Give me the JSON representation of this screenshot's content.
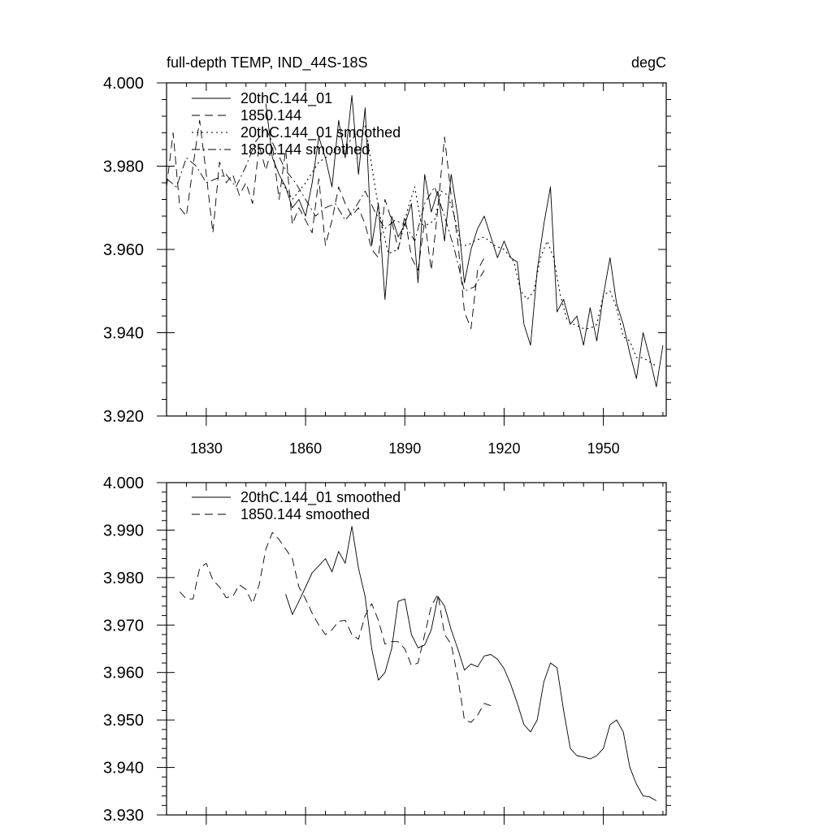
{
  "chart_data": [
    {
      "type": "line",
      "title": "full-depth TEMP, IND_44S-18S",
      "units": "degC",
      "xlim": [
        1818,
        1969
      ],
      "ylim": [
        3.92,
        4.0
      ],
      "x_ticks": [
        1830,
        1860,
        1890,
        1920,
        1950
      ],
      "x_tick_labels": [
        "1830",
        "1860",
        "1890",
        "1920",
        "1950"
      ],
      "y_ticks": [
        3.92,
        3.94,
        3.96,
        3.98,
        4.0
      ],
      "y_tick_labels": [
        "3.920",
        "3.940",
        "3.960",
        "3.980",
        "4.000"
      ],
      "legend_position": "top-left",
      "series": [
        {
          "name": "20thC.144_01",
          "style": "solid",
          "x": [
            1848,
            1850,
            1852,
            1854,
            1856,
            1858,
            1860,
            1862,
            1864,
            1866,
            1868,
            1870,
            1872,
            1874,
            1876,
            1878,
            1880,
            1882,
            1884,
            1886,
            1888,
            1890,
            1892,
            1894,
            1896,
            1898,
            1900,
            1902,
            1904,
            1906,
            1908,
            1910,
            1912,
            1914,
            1916,
            1918,
            1920,
            1922,
            1924,
            1926,
            1928,
            1930,
            1932,
            1934,
            1936,
            1938,
            1940,
            1942,
            1944,
            1946,
            1948,
            1950,
            1952,
            1954,
            1956,
            1958,
            1960,
            1962,
            1964,
            1966,
            1968
          ],
          "values": [
            3.995,
            3.982,
            3.978,
            3.975,
            3.97,
            3.972,
            3.968,
            3.976,
            3.987,
            3.982,
            3.975,
            3.991,
            3.982,
            3.997,
            3.978,
            3.994,
            3.961,
            3.971,
            3.948,
            3.968,
            3.963,
            3.966,
            3.971,
            3.952,
            3.978,
            3.969,
            3.974,
            3.962,
            3.978,
            3.968,
            3.952,
            3.96,
            3.965,
            3.968,
            3.963,
            3.958,
            3.962,
            3.958,
            3.957,
            3.942,
            3.937,
            3.955,
            3.966,
            3.975,
            3.945,
            3.948,
            3.942,
            3.944,
            3.937,
            3.946,
            3.938,
            3.949,
            3.958,
            3.947,
            3.942,
            3.935,
            3.929,
            3.94,
            3.934,
            3.927,
            3.937
          ]
        },
        {
          "name": "1850.144",
          "style": "dashed",
          "x": [
            1818,
            1820,
            1822,
            1824,
            1826,
            1828,
            1830,
            1832,
            1834,
            1836,
            1838,
            1840,
            1842,
            1844,
            1846,
            1848,
            1850,
            1852,
            1854,
            1856,
            1858,
            1860,
            1862,
            1864,
            1866,
            1868,
            1870,
            1872,
            1874,
            1876,
            1878,
            1880,
            1882,
            1884,
            1886,
            1888,
            1890,
            1892,
            1894,
            1896,
            1898,
            1900,
            1902,
            1904,
            1906,
            1908,
            1910,
            1912,
            1914
          ],
          "values": [
            3.975,
            3.988,
            3.97,
            3.968,
            3.98,
            3.991,
            3.978,
            3.964,
            3.981,
            3.976,
            3.978,
            3.973,
            3.976,
            3.971,
            3.985,
            3.979,
            3.985,
            3.972,
            3.984,
            3.966,
            3.97,
            3.967,
            3.964,
            3.977,
            3.961,
            3.967,
            3.975,
            3.971,
            3.968,
            3.97,
            3.966,
            3.96,
            3.958,
            3.972,
            3.967,
            3.96,
            3.968,
            3.958,
            3.955,
            3.967,
            3.955,
            3.97,
            3.987,
            3.973,
            3.962,
            3.945,
            3.941,
            3.955,
            3.958
          ]
        },
        {
          "name": "20thC.144_01 smoothed",
          "style": "dotted",
          "x": [
            1853,
            1856,
            1860,
            1864,
            1868,
            1872,
            1876,
            1878,
            1881,
            1883,
            1885,
            1888,
            1891,
            1893,
            1895,
            1897,
            1899,
            1901,
            1903,
            1905,
            1907,
            1909,
            1911,
            1914,
            1917,
            1920,
            1923,
            1925,
            1927,
            1929,
            1931,
            1933,
            1935,
            1937,
            1939,
            1941,
            1944,
            1946,
            1948,
            1950,
            1952,
            1954,
            1956,
            1958,
            1960,
            1962,
            1964,
            1966
          ],
          "values": [
            3.976,
            3.972,
            3.976,
            3.981,
            3.983,
            3.985,
            3.988,
            3.99,
            3.975,
            3.966,
            3.959,
            3.96,
            3.97,
            3.975,
            3.966,
            3.966,
            3.967,
            3.974,
            3.973,
            3.968,
            3.961,
            3.961,
            3.962,
            3.963,
            3.961,
            3.96,
            3.957,
            3.95,
            3.948,
            3.95,
            3.958,
            3.962,
            3.958,
            3.949,
            3.943,
            3.942,
            3.941,
            3.941,
            3.942,
            3.949,
            3.95,
            3.946,
            3.939,
            3.938,
            3.934,
            3.934,
            3.933,
            3.932
          ]
        },
        {
          "name": "1850.144 smoothed",
          "style": "dash-dot",
          "x": [
            1818,
            1821,
            1824,
            1827,
            1830,
            1833,
            1836,
            1839,
            1842,
            1845,
            1848,
            1851,
            1854,
            1857,
            1860,
            1863,
            1866,
            1869,
            1872,
            1875,
            1878,
            1881,
            1884,
            1887,
            1890,
            1893,
            1896,
            1899,
            1902,
            1905,
            1908,
            1911,
            1914
          ],
          "values": [
            3.977,
            3.975,
            3.982,
            3.98,
            3.976,
            3.977,
            3.978,
            3.975,
            3.98,
            3.986,
            3.989,
            3.984,
            3.979,
            3.976,
            3.972,
            3.968,
            3.97,
            3.971,
            3.967,
            3.97,
            3.974,
            3.969,
            3.965,
            3.967,
            3.966,
            3.962,
            3.971,
            3.975,
            3.968,
            3.96,
            3.95,
            3.951,
            3.955
          ]
        }
      ]
    },
    {
      "type": "line",
      "title": "",
      "xlim": [
        1818,
        1969
      ],
      "ylim": [
        3.93,
        4.0
      ],
      "x_ticks": [
        1830,
        1860,
        1890,
        1920,
        1950
      ],
      "y_ticks": [
        3.93,
        3.94,
        3.95,
        3.96,
        3.97,
        3.98,
        3.99,
        4.0
      ],
      "y_tick_labels": [
        "3.930",
        "3.940",
        "3.950",
        "3.960",
        "3.970",
        "3.980",
        "3.990",
        "4.000"
      ],
      "legend_position": "top-left",
      "series": [
        {
          "name": "20thC.144_01 smoothed",
          "style": "solid",
          "x": [
            1854,
            1856,
            1858,
            1860,
            1862,
            1864,
            1866,
            1868,
            1870,
            1872,
            1874,
            1876,
            1878,
            1880,
            1882,
            1884,
            1886,
            1888,
            1890,
            1892,
            1894,
            1896,
            1898,
            1900,
            1902,
            1904,
            1906,
            1908,
            1910,
            1912,
            1914,
            1916,
            1918,
            1920,
            1922,
            1924,
            1926,
            1928,
            1930,
            1932,
            1934,
            1936,
            1938,
            1940,
            1942,
            1944,
            1946,
            1948,
            1950,
            1952,
            1954,
            1956,
            1958,
            1960,
            1962,
            1964,
            1966
          ],
          "values": [
            3.9765,
            3.9722,
            3.975,
            3.978,
            3.981,
            3.9825,
            3.984,
            3.9812,
            3.9855,
            3.983,
            3.9908,
            3.982,
            3.976,
            3.965,
            3.9584,
            3.96,
            3.965,
            3.975,
            3.9755,
            3.968,
            3.9652,
            3.9658,
            3.969,
            3.976,
            3.974,
            3.969,
            3.965,
            3.9605,
            3.9618,
            3.9612,
            3.9635,
            3.9638,
            3.9628,
            3.9608,
            3.9575,
            3.9535,
            3.949,
            3.9475,
            3.95,
            3.958,
            3.962,
            3.961,
            3.952,
            3.944,
            3.9425,
            3.9422,
            3.9418,
            3.9425,
            3.944,
            3.949,
            3.95,
            3.9475,
            3.94,
            3.9365,
            3.934,
            3.9338,
            3.933
          ]
        },
        {
          "name": "1850.144 smoothed",
          "style": "dashed",
          "x": [
            1822,
            1824,
            1826,
            1828,
            1830,
            1832,
            1834,
            1836,
            1838,
            1840,
            1842,
            1844,
            1846,
            1848,
            1850,
            1852,
            1854,
            1856,
            1858,
            1860,
            1862,
            1864,
            1866,
            1868,
            1870,
            1872,
            1874,
            1876,
            1878,
            1880,
            1882,
            1884,
            1886,
            1888,
            1890,
            1892,
            1894,
            1896,
            1898,
            1900,
            1902,
            1904,
            1906,
            1908,
            1910,
            1912,
            1914,
            1916
          ],
          "values": [
            3.977,
            3.9755,
            3.9755,
            3.982,
            3.983,
            3.9795,
            3.978,
            3.9758,
            3.976,
            3.9785,
            3.9775,
            3.9745,
            3.9785,
            3.986,
            3.9895,
            3.988,
            3.986,
            3.984,
            3.978,
            3.9755,
            3.9725,
            3.97,
            3.968,
            3.969,
            3.9708,
            3.971,
            3.968,
            3.967,
            3.972,
            3.9745,
            3.971,
            3.966,
            3.9665,
            3.9665,
            3.965,
            3.9615,
            3.962,
            3.968,
            3.974,
            3.9765,
            3.968,
            3.966,
            3.959,
            3.95,
            3.9495,
            3.951,
            3.9535,
            3.953
          ]
        }
      ]
    }
  ]
}
